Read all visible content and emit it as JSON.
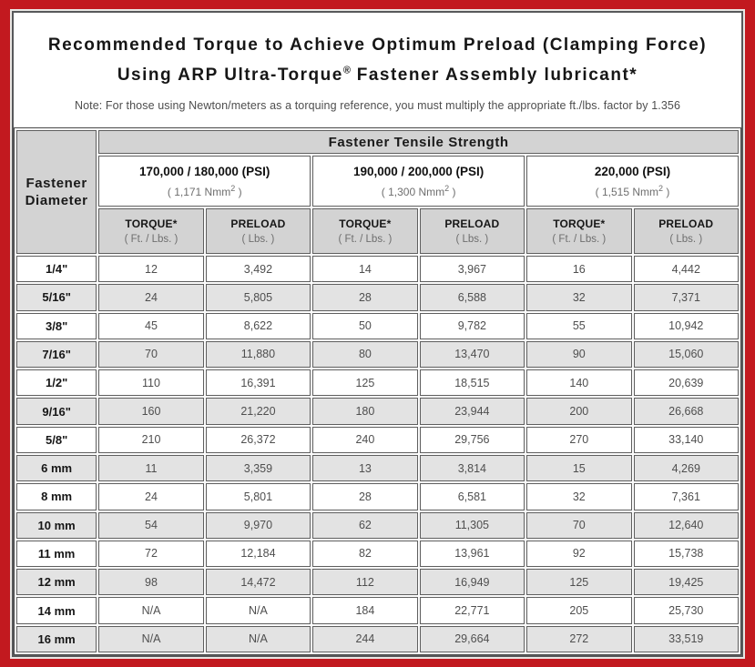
{
  "colors": {
    "frame_red": "#c2191f",
    "header_gray": "#d3d3d3",
    "stripe_gray": "#e3e3e3",
    "panel_border": "#57585a"
  },
  "title": {
    "line1": "Recommended Torque to Achieve Optimum Preload (Clamping Force)",
    "line2_pre": "Using ARP Ultra-Torque",
    "line2_sup": "®",
    "line2_post": " Fastener Assembly lubricant*"
  },
  "note": "Note: For those using Newton/meters as a torquing reference, you must multiply the appropriate ft./lbs. factor by 1.356",
  "table": {
    "tensile_header": "Fastener Tensile Strength",
    "diameter_header": "Fastener Diameter",
    "groups": [
      {
        "psi": "170,000 / 180,000 (PSI)",
        "nmm_pre": "( 1,171 Nmm",
        "nmm_sup": "2",
        "nmm_post": " )"
      },
      {
        "psi": "190,000 / 200,000 (PSI)",
        "nmm_pre": "( 1,300 Nmm",
        "nmm_sup": "2",
        "nmm_post": " )"
      },
      {
        "psi": "220,000 (PSI)",
        "nmm_pre": "( 1,515 Nmm",
        "nmm_sup": "2",
        "nmm_post": " )"
      }
    ],
    "col_headers": {
      "torque_label": "TORQUE*",
      "torque_unit": "( Ft. / Lbs. )",
      "preload_label": "PRELOAD",
      "preload_unit": "( Lbs. )"
    },
    "rows": [
      {
        "diameter": "1/4\"",
        "values": [
          "12",
          "3,492",
          "14",
          "3,967",
          "16",
          "4,442"
        ]
      },
      {
        "diameter": "5/16\"",
        "values": [
          "24",
          "5,805",
          "28",
          "6,588",
          "32",
          "7,371"
        ]
      },
      {
        "diameter": "3/8\"",
        "values": [
          "45",
          "8,622",
          "50",
          "9,782",
          "55",
          "10,942"
        ]
      },
      {
        "diameter": "7/16\"",
        "values": [
          "70",
          "11,880",
          "80",
          "13,470",
          "90",
          "15,060"
        ]
      },
      {
        "diameter": "1/2\"",
        "values": [
          "110",
          "16,391",
          "125",
          "18,515",
          "140",
          "20,639"
        ]
      },
      {
        "diameter": "9/16\"",
        "values": [
          "160",
          "21,220",
          "180",
          "23,944",
          "200",
          "26,668"
        ]
      },
      {
        "diameter": "5/8\"",
        "values": [
          "210",
          "26,372",
          "240",
          "29,756",
          "270",
          "33,140"
        ]
      },
      {
        "diameter": "6 mm",
        "values": [
          "11",
          "3,359",
          "13",
          "3,814",
          "15",
          "4,269"
        ]
      },
      {
        "diameter": "8 mm",
        "values": [
          "24",
          "5,801",
          "28",
          "6,581",
          "32",
          "7,361"
        ]
      },
      {
        "diameter": "10 mm",
        "values": [
          "54",
          "9,970",
          "62",
          "11,305",
          "70",
          "12,640"
        ]
      },
      {
        "diameter": "11 mm",
        "values": [
          "72",
          "12,184",
          "82",
          "13,961",
          "92",
          "15,738"
        ]
      },
      {
        "diameter": "12 mm",
        "values": [
          "98",
          "14,472",
          "112",
          "16,949",
          "125",
          "19,425"
        ]
      },
      {
        "diameter": "14 mm",
        "values": [
          "N/A",
          "N/A",
          "184",
          "22,771",
          "205",
          "25,730"
        ]
      },
      {
        "diameter": "16 mm",
        "values": [
          "N/A",
          "N/A",
          "244",
          "29,664",
          "272",
          "33,519"
        ]
      }
    ]
  }
}
